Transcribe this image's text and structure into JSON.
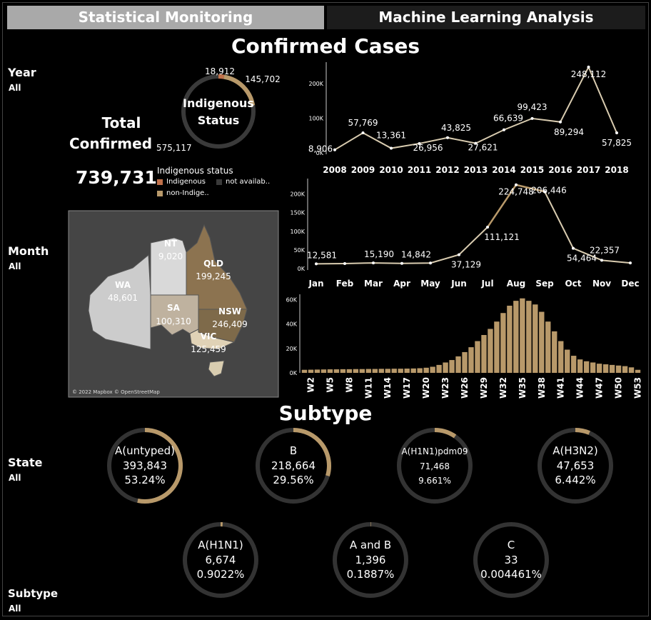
{
  "tabs": [
    "Statistical Monitoring",
    "Machine Learning Analysis"
  ],
  "titles": {
    "confirmed": "Confirmed Cases",
    "subtype": "Subtype"
  },
  "filters": [
    {
      "label": "Year",
      "value": "All"
    },
    {
      "label": "Month",
      "value": "All"
    },
    {
      "label": "State",
      "value": "All"
    },
    {
      "label": "Subtype",
      "value": "All"
    }
  ],
  "total": {
    "label_line1": "Total",
    "label_line2": "Confirmed",
    "value": "739,731"
  },
  "indigenous_donut": {
    "title_line1": "Indigenous",
    "title_line2": "Status",
    "labels": {
      "indigenous": "18,912",
      "not_available": "145,702",
      "non_indigenous": "575,117"
    },
    "values": {
      "indigenous": 18912,
      "not_available": 145702,
      "non_indigenous": 575117
    }
  },
  "legend": {
    "title": "Indigenous status",
    "items": [
      {
        "label": "Indigenous",
        "color": "#c0704a"
      },
      {
        "label": "not availab..",
        "color": "#3a3a3a"
      },
      {
        "label": "non-Indige..",
        "color": "#b8996a"
      }
    ]
  },
  "map": {
    "attribution": "© 2022 Mapbox © OpenStreetMap",
    "states": [
      {
        "code": "WA",
        "value": "48,601"
      },
      {
        "code": "NT",
        "value": "9,020"
      },
      {
        "code": "QLD",
        "value": "199,245"
      },
      {
        "code": "SA",
        "value": "100,310"
      },
      {
        "code": "NSW",
        "value": "246,409"
      },
      {
        "code": "VIC",
        "value": "125,459"
      }
    ]
  },
  "colors": {
    "accent": "#b8996a",
    "line": "#d9ccb0",
    "track": "#333333",
    "bar": "#b8996a"
  },
  "chart_data": [
    {
      "type": "line",
      "categories": [
        "2008",
        "2009",
        "2010",
        "2011",
        "2012",
        "2013",
        "2014",
        "2015",
        "2016",
        "2017",
        "2018"
      ],
      "values": [
        8906,
        57769,
        13361,
        26956,
        43825,
        27621,
        66639,
        99423,
        89294,
        248112,
        57825
      ],
      "labels": [
        "8,906",
        "57,769",
        "13,361",
        "26,956",
        "43,825",
        "27,621",
        "66,639",
        "99,423",
        "89,294",
        "248,112",
        "57,825"
      ],
      "yticks": [
        "0K",
        "100K",
        "200K"
      ],
      "ylim": [
        0,
        250000
      ]
    },
    {
      "type": "line",
      "categories": [
        "Jan",
        "Feb",
        "Mar",
        "Apr",
        "May",
        "Jun",
        "Jul",
        "Aug",
        "Sep",
        "Oct",
        "Nov",
        "Dec"
      ],
      "values": [
        12581,
        13500,
        15190,
        14000,
        14842,
        37129,
        111121,
        224748,
        206446,
        54464,
        22357,
        15000
      ],
      "labels": [
        "12,581",
        "",
        "15,190",
        "",
        "14,842",
        "37,129",
        "111,121",
        "224,748",
        "206,446",
        "54,464",
        "22,357",
        ""
      ],
      "yticks": [
        "0K",
        "50K",
        "100K",
        "150K",
        "200K"
      ],
      "ylim": [
        0,
        230000
      ]
    },
    {
      "type": "bar",
      "categories": [
        "W1",
        "W2",
        "W3",
        "W4",
        "W5",
        "W6",
        "W7",
        "W8",
        "W9",
        "W10",
        "W11",
        "W12",
        "W13",
        "W14",
        "W15",
        "W16",
        "W17",
        "W18",
        "W19",
        "W20",
        "W21",
        "W22",
        "W23",
        "W24",
        "W25",
        "W26",
        "W27",
        "W28",
        "W29",
        "W30",
        "W31",
        "W32",
        "W33",
        "W34",
        "W35",
        "W36",
        "W37",
        "W38",
        "W39",
        "W40",
        "W41",
        "W42",
        "W43",
        "W44",
        "W45",
        "W46",
        "W47",
        "W48",
        "W49",
        "W50",
        "W51",
        "W52",
        "W53"
      ],
      "tick_labels": [
        "W2",
        "W5",
        "W8",
        "W11",
        "W14",
        "W17",
        "W20",
        "W23",
        "W26",
        "W29",
        "W32",
        "W35",
        "W38",
        "W41",
        "W44",
        "W47",
        "W50",
        "W53"
      ],
      "values": [
        2500,
        2600,
        2700,
        2800,
        2900,
        2900,
        3000,
        3000,
        3100,
        3100,
        3200,
        3200,
        3300,
        3300,
        3400,
        3400,
        3500,
        3600,
        3800,
        4200,
        5000,
        6500,
        8500,
        10500,
        13500,
        17000,
        21000,
        26000,
        31000,
        36000,
        42000,
        49000,
        55000,
        59000,
        61000,
        59000,
        56000,
        50000,
        42000,
        34000,
        26000,
        19000,
        14000,
        11000,
        9500,
        8500,
        7500,
        7000,
        6500,
        6000,
        5500,
        4500,
        2500
      ],
      "yticks": [
        "0K",
        "20K",
        "40K",
        "60K"
      ],
      "ylim": [
        0,
        62000
      ]
    }
  ],
  "subtypes": [
    {
      "name": "A(untyped)",
      "count": "393,843",
      "pct": "53.24%",
      "fraction": 0.5324
    },
    {
      "name": "B",
      "count": "218,664",
      "pct": "29.56%",
      "fraction": 0.2956
    },
    {
      "name": "A(H1N1)pdm09",
      "count": "71,468",
      "pct": "9.661%",
      "fraction": 0.09661
    },
    {
      "name": "A(H3N2)",
      "count": "47,653",
      "pct": "6.442%",
      "fraction": 0.06442
    },
    {
      "name": "A(H1N1)",
      "count": "6,674",
      "pct": "0.9022%",
      "fraction": 0.009022
    },
    {
      "name": "A and B",
      "count": "1,396",
      "pct": "0.1887%",
      "fraction": 0.001887
    },
    {
      "name": "C",
      "count": "33",
      "pct": "0.004461%",
      "fraction": 4.461e-05
    }
  ]
}
